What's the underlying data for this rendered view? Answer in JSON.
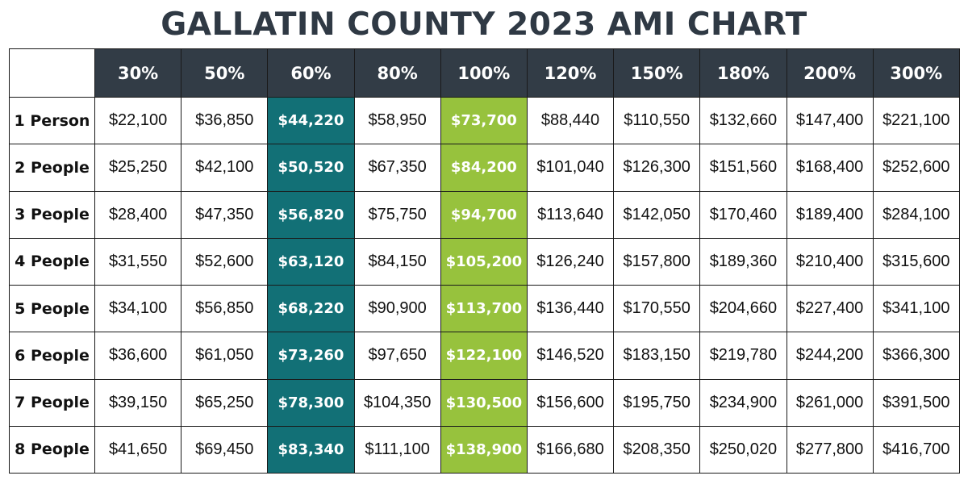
{
  "title": "GALLATIN COUNTY 2023 AMI CHART",
  "colors": {
    "header_bg": "#323c46",
    "title_text": "#2f3944",
    "highlight_60": "#127076",
    "highlight_100": "#97c23d"
  },
  "chart_data": {
    "type": "table",
    "title": "GALLATIN COUNTY 2023 AMI CHART",
    "columns": [
      "30%",
      "50%",
      "60%",
      "80%",
      "100%",
      "120%",
      "150%",
      "180%",
      "200%",
      "300%"
    ],
    "highlighted_columns": {
      "60%": "#127076",
      "100%": "#97c23d"
    },
    "rows": [
      {
        "label": "1 Person",
        "values": [
          "$22,100",
          "$36,850",
          "$44,220",
          "$58,950",
          "$73,700",
          "$88,440",
          "$110,550",
          "$132,660",
          "$147,400",
          "$221,100"
        ]
      },
      {
        "label": "2 People",
        "values": [
          "$25,250",
          "$42,100",
          "$50,520",
          "$67,350",
          "$84,200",
          "$101,040",
          "$126,300",
          "$151,560",
          "$168,400",
          "$252,600"
        ]
      },
      {
        "label": "3 People",
        "values": [
          "$28,400",
          "$47,350",
          "$56,820",
          "$75,750",
          "$94,700",
          "$113,640",
          "$142,050",
          "$170,460",
          "$189,400",
          "$284,100"
        ]
      },
      {
        "label": "4 People",
        "values": [
          "$31,550",
          "$52,600",
          "$63,120",
          "$84,150",
          "$105,200",
          "$126,240",
          "$157,800",
          "$189,360",
          "$210,400",
          "$315,600"
        ]
      },
      {
        "label": "5 People",
        "values": [
          "$34,100",
          "$56,850",
          "$68,220",
          "$90,900",
          "$113,700",
          "$136,440",
          "$170,550",
          "$204,660",
          "$227,400",
          "$341,100"
        ]
      },
      {
        "label": "6 People",
        "values": [
          "$36,600",
          "$61,050",
          "$73,260",
          "$97,650",
          "$122,100",
          "$146,520",
          "$183,150",
          "$219,780",
          "$244,200",
          "$366,300"
        ]
      },
      {
        "label": "7 People",
        "values": [
          "$39,150",
          "$65,250",
          "$78,300",
          "$104,350",
          "$130,500",
          "$156,600",
          "$195,750",
          "$234,900",
          "$261,000",
          "$391,500"
        ]
      },
      {
        "label": "8 People",
        "values": [
          "$41,650",
          "$69,450",
          "$83,340",
          "$111,100",
          "$138,900",
          "$166,680",
          "$208,350",
          "$250,020",
          "$277,800",
          "$416,700"
        ]
      }
    ]
  }
}
